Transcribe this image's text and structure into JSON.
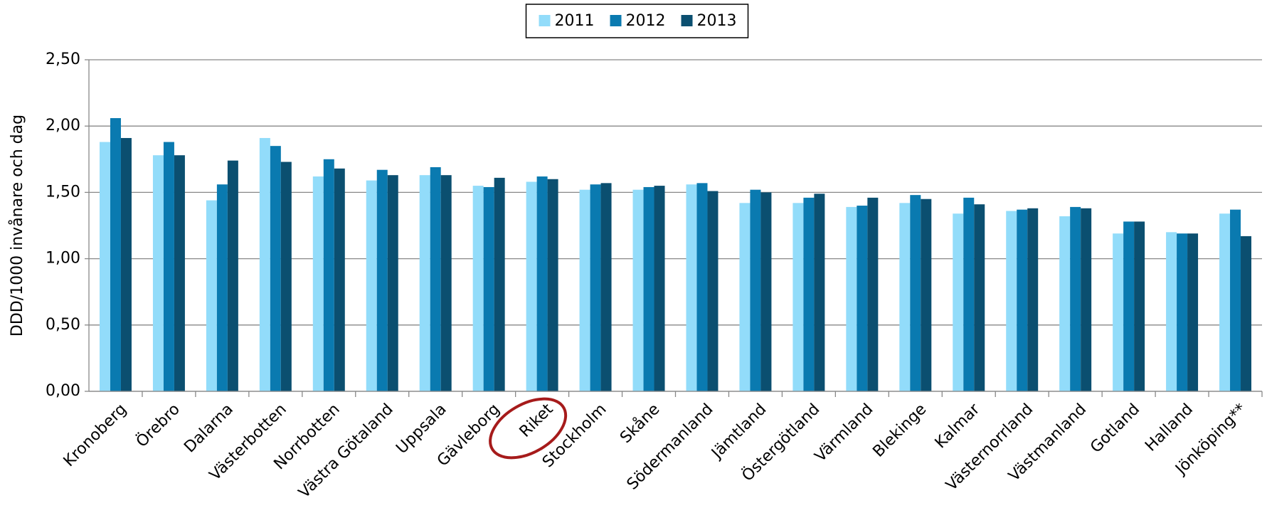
{
  "chart_data": {
    "type": "bar",
    "y_label": "DDD/1000 invånare och dag",
    "categories": [
      "Kronoberg",
      "Örebro",
      "Dalarna",
      "Västerbotten",
      "Norrbotten",
      "Västra Götaland",
      "Uppsala",
      "Gävleborg",
      "Riket",
      "Stockholm",
      "Skåne",
      "Södermanland",
      "Jämtland",
      "Östergötland",
      "Värmland",
      "Blekinge",
      "Kalmar",
      "Västernorrland",
      "Västmanland",
      "Gotland",
      "Halland",
      "Jönköping**"
    ],
    "series": [
      {
        "name": "2011",
        "color": "#92dcfa",
        "values": [
          1.88,
          1.78,
          1.44,
          1.91,
          1.62,
          1.59,
          1.63,
          1.55,
          1.58,
          1.52,
          1.52,
          1.56,
          1.42,
          1.42,
          1.39,
          1.42,
          1.34,
          1.36,
          1.32,
          1.19,
          1.2,
          1.34
        ]
      },
      {
        "name": "2012",
        "color": "#0a7ab0",
        "values": [
          2.06,
          1.88,
          1.56,
          1.85,
          1.75,
          1.67,
          1.69,
          1.54,
          1.62,
          1.56,
          1.54,
          1.57,
          1.52,
          1.46,
          1.4,
          1.48,
          1.46,
          1.37,
          1.39,
          1.28,
          1.19,
          1.37
        ]
      },
      {
        "name": "2013",
        "color": "#0b4f70",
        "values": [
          1.91,
          1.78,
          1.74,
          1.73,
          1.68,
          1.63,
          1.63,
          1.61,
          1.6,
          1.57,
          1.55,
          1.51,
          1.5,
          1.49,
          1.46,
          1.45,
          1.41,
          1.38,
          1.38,
          1.28,
          1.19,
          1.17
        ]
      }
    ],
    "ylim": [
      0,
      2.5
    ],
    "yticks": [
      {
        "value": 0,
        "label": "0,00"
      },
      {
        "value": 0.5,
        "label": "0,50"
      },
      {
        "value": 1,
        "label": "1,00"
      },
      {
        "value": 1.5,
        "label": "1,50"
      },
      {
        "value": 2,
        "label": "2,00"
      },
      {
        "value": 2.5,
        "label": "2,50"
      }
    ],
    "grid": true,
    "legend": "top"
  }
}
